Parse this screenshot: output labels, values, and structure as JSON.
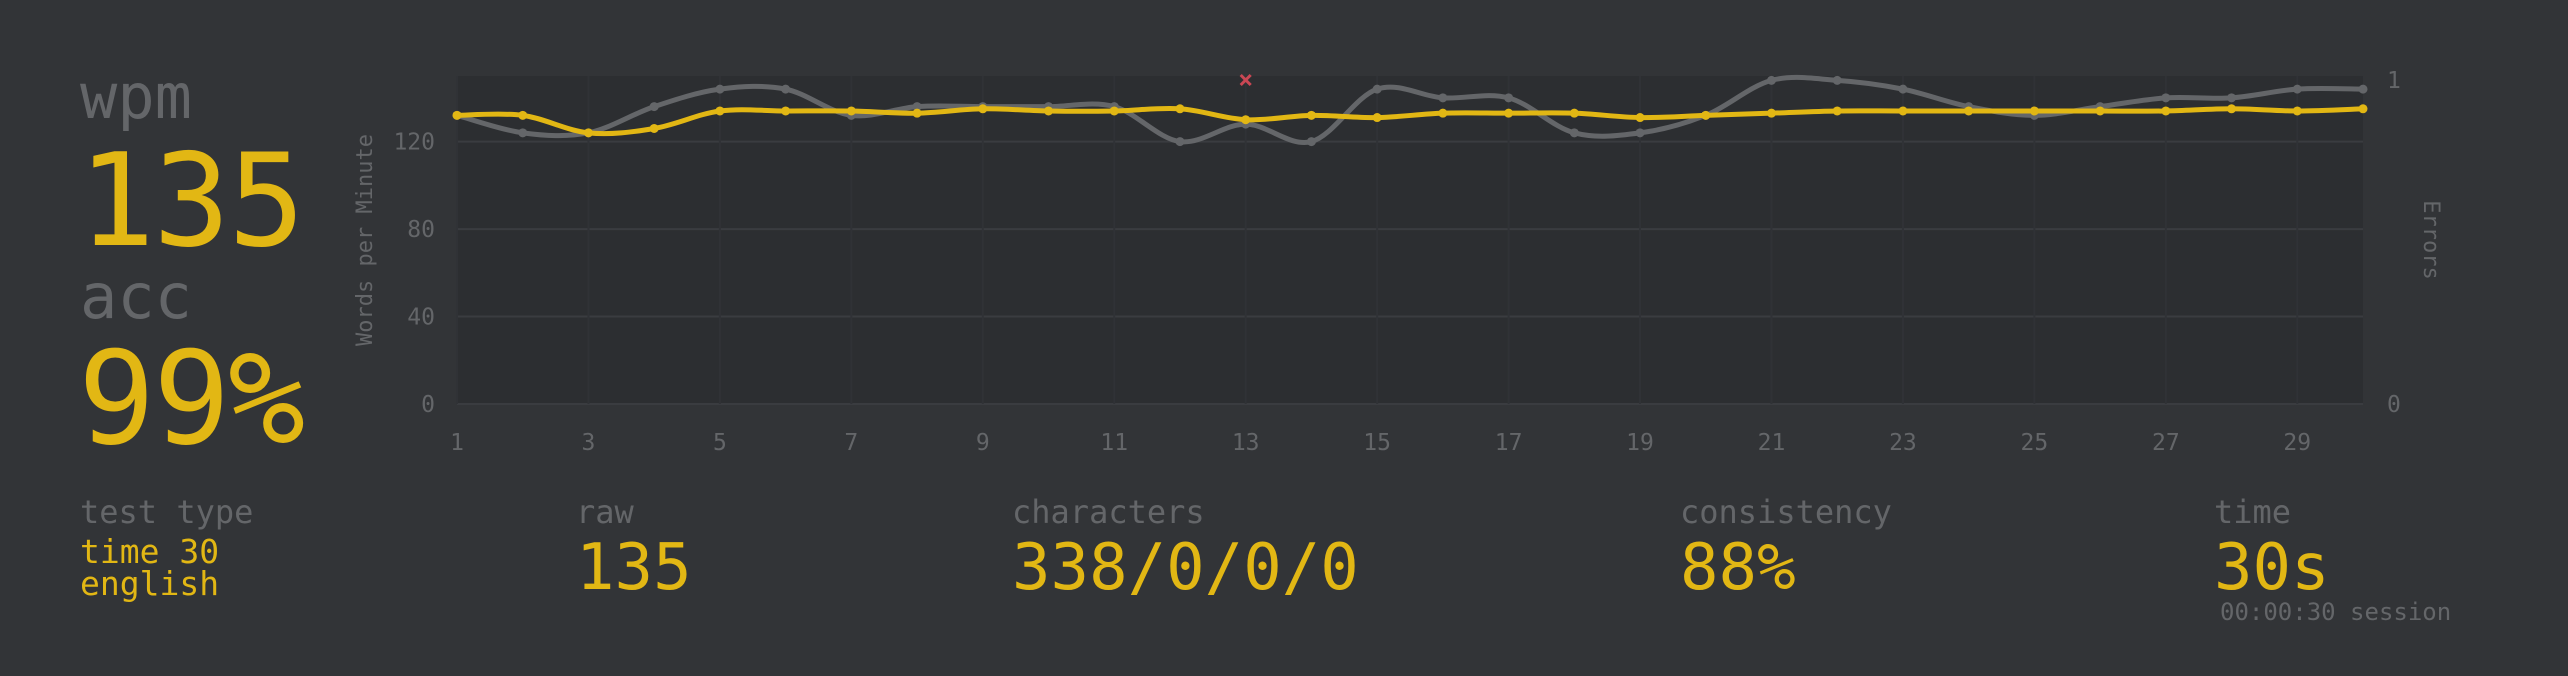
{
  "summary": {
    "wpm_label": "wpm",
    "wpm_value": "135",
    "acc_label": "acc",
    "acc_value": "99%"
  },
  "stats": {
    "test_type_label": "test type",
    "test_type_mode": "time 30",
    "test_type_language": "english",
    "raw_label": "raw",
    "raw_value": "135",
    "characters_label": "characters",
    "characters_value": "338/0/0/0",
    "consistency_label": "consistency",
    "consistency_value": "88%",
    "time_label": "time",
    "time_value": "30s",
    "session_text": "00:00:30 session"
  },
  "colors": {
    "background": "#323437",
    "plot_background": "#2c2e31",
    "accent": "#e2b714",
    "raw_line": "#646669",
    "error": "#ca4754"
  },
  "chart_data": {
    "type": "line",
    "ylabel": "Words per Minute",
    "y2label": "Errors",
    "ylim": [
      0,
      150
    ],
    "y2lim": [
      0,
      1
    ],
    "yticks": [
      "0",
      "40",
      "80",
      "120"
    ],
    "y2ticks": [
      "0",
      "1"
    ],
    "xticks": [
      "1",
      "3",
      "5",
      "7",
      "9",
      "11",
      "13",
      "15",
      "17",
      "19",
      "21",
      "23",
      "25",
      "27",
      "29"
    ],
    "x": [
      1,
      2,
      3,
      4,
      5,
      6,
      7,
      8,
      9,
      10,
      11,
      12,
      13,
      14,
      15,
      16,
      17,
      18,
      19,
      20,
      21,
      22,
      23,
      24,
      25,
      26,
      27,
      28,
      29,
      30
    ],
    "series": [
      {
        "name": "raw",
        "color": "#646669",
        "values": [
          132,
          124,
          124,
          136,
          144,
          144,
          132,
          136,
          136,
          136,
          136,
          120,
          128,
          120,
          144,
          140,
          140,
          124,
          124,
          132,
          148,
          148,
          144,
          136,
          132,
          136,
          140,
          140,
          144,
          144
        ]
      },
      {
        "name": "wpm",
        "color": "#e2b714",
        "values": [
          132,
          132,
          124,
          126,
          134,
          134,
          134,
          133,
          135,
          134,
          134,
          135,
          130,
          132,
          131,
          133,
          133,
          133,
          131,
          132,
          133,
          134,
          134,
          134,
          134,
          134,
          134,
          135,
          134,
          135
        ]
      }
    ],
    "errors": [
      {
        "x": 13,
        "value": 1
      }
    ]
  }
}
